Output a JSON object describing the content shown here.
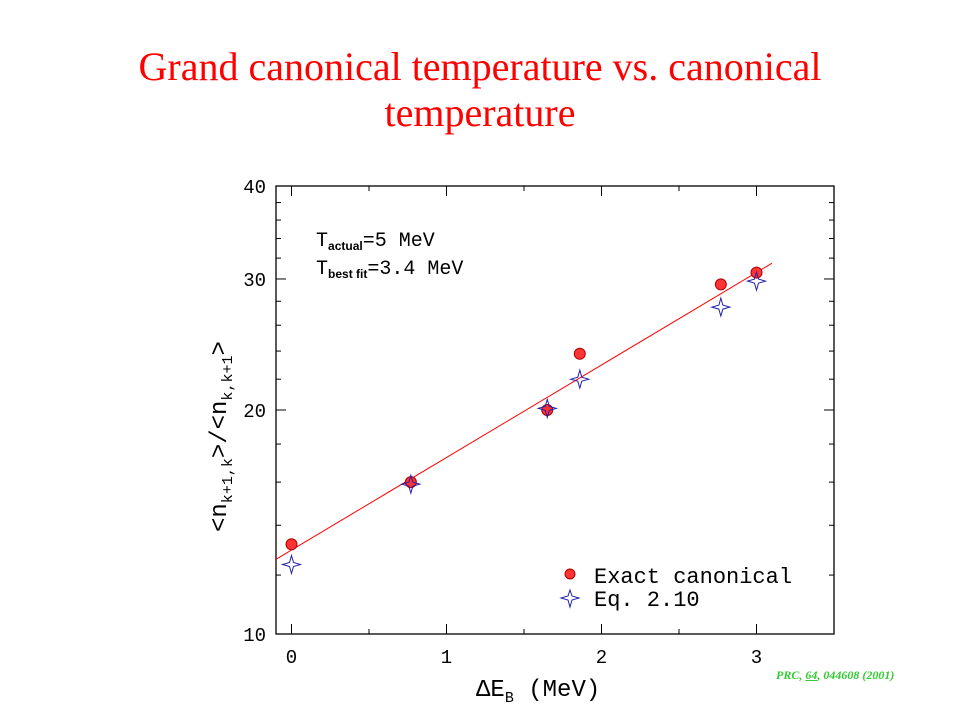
{
  "title": {
    "line1": "Grand canonical temperature vs. canonical",
    "line2": "temperature"
  },
  "citation": {
    "prefix": "PRC, ",
    "volume": "64",
    "suffix": ", 044608 (2001)"
  },
  "colors": {
    "title": "#ff0000",
    "exact_marker": "#ff3333",
    "eq_marker": "#2222aa",
    "fit_line": "#ff0000",
    "citation": "#33cc33"
  },
  "chart_data": {
    "type": "scatter",
    "xlabel": {
      "main": "ΔE",
      "sub": "B",
      "unit": " (MeV)"
    },
    "ylabel": {
      "open1": "<n",
      "sub1": "k+1,k",
      "mid": ">/<n",
      "sub2": "k,k+1",
      "close": ">"
    },
    "xlim": [
      -0.1,
      3.5
    ],
    "ylim": [
      10,
      40
    ],
    "yscale": "log",
    "xticks": [
      "0",
      "1",
      "2",
      "3"
    ],
    "yticks": [
      "10",
      "20",
      "30",
      "40"
    ],
    "annotations": [
      {
        "main": "T",
        "sub": "actual",
        "rest": "=5 MeV"
      },
      {
        "main": "T",
        "sub": "best fit",
        "rest": "=3.4 MeV"
      }
    ],
    "legend_position": "bottom-right",
    "series": [
      {
        "name": "Exact canonical",
        "marker": "circle",
        "x": [
          0.0,
          0.77,
          1.65,
          1.86,
          2.77,
          3.0
        ],
        "y": [
          13.2,
          16.0,
          20.0,
          23.8,
          29.5,
          30.6
        ]
      },
      {
        "name": "Eq. 2.10",
        "marker": "star",
        "x": [
          0.0,
          0.77,
          1.65,
          1.86,
          2.77,
          3.0
        ],
        "y": [
          12.4,
          15.9,
          20.1,
          22.0,
          27.5,
          29.8
        ]
      }
    ],
    "fit_line": {
      "x": [
        -0.1,
        3.1
      ],
      "y": [
        12.6,
        31.5
      ]
    }
  }
}
